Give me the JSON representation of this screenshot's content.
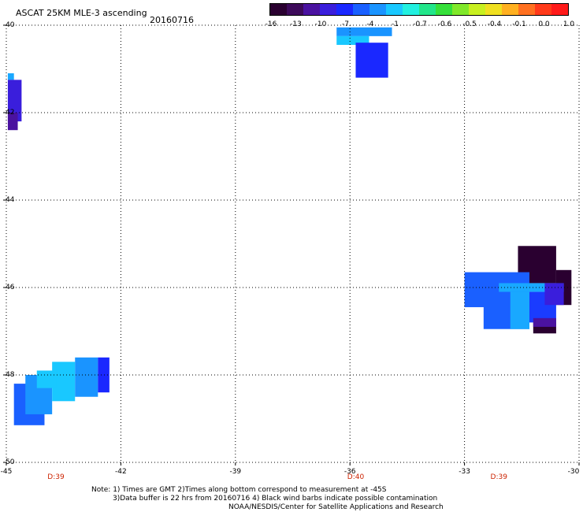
{
  "header": {
    "title": "ASCAT 25KM MLE-3 ascending",
    "date": "20160716"
  },
  "colorbar": {
    "colors": [
      "#2a0030",
      "#3d0a5a",
      "#4a12a0",
      "#3a1edc",
      "#1a28ff",
      "#1a60ff",
      "#1a94ff",
      "#19c8ff",
      "#22f0e0",
      "#22e68a",
      "#35e03a",
      "#80e82a",
      "#c8f020",
      "#f0e020",
      "#ffb020",
      "#ff7020",
      "#ff3a1a",
      "#ff1a1a"
    ],
    "labels": [
      "-16",
      "-13",
      "-10",
      "-7",
      "-4",
      "-1",
      "-0.7",
      "-0.6",
      "-0.5",
      "-0.4",
      "-0.1",
      "0.0",
      "1.0"
    ]
  },
  "axes": {
    "x_ticks": [
      "-45",
      "-42",
      "-39",
      "-36",
      "-33",
      "-30"
    ],
    "y_ticks": [
      "40",
      "42",
      "44",
      "46",
      "48",
      "50"
    ]
  },
  "swaths": [
    {
      "lon_min": -44.96,
      "lon_max": -44.8,
      "lat_min": 41.1,
      "lat_max": 41.25,
      "color": "#19a8ff"
    },
    {
      "lon_min": -44.96,
      "lon_max": -44.6,
      "lat_min": 41.25,
      "lat_max": 42.2,
      "color": "#3a1edc"
    },
    {
      "lon_min": -44.96,
      "lon_max": -44.7,
      "lat_min": 42.0,
      "lat_max": 42.4,
      "color": "#4a12a0"
    },
    {
      "lon_min": -36.35,
      "lon_max": -34.9,
      "lat_min": 40.05,
      "lat_max": 40.25,
      "color": "#1a94ff"
    },
    {
      "lon_min": -36.35,
      "lon_max": -35.5,
      "lat_min": 40.25,
      "lat_max": 40.45,
      "color": "#19c8ff"
    },
    {
      "lon_min": -35.85,
      "lon_max": -35.0,
      "lat_min": 40.4,
      "lat_max": 41.2,
      "color": "#1a28ff"
    },
    {
      "lon_min": -31.6,
      "lon_max": -30.6,
      "lat_min": 45.05,
      "lat_max": 45.9,
      "color": "#2a0030"
    },
    {
      "lon_min": -30.6,
      "lon_max": -30.2,
      "lat_min": 45.6,
      "lat_max": 46.4,
      "color": "#2a0030"
    },
    {
      "lon_min": -33.0,
      "lon_max": -31.3,
      "lat_min": 45.65,
      "lat_max": 46.45,
      "color": "#1a60ff"
    },
    {
      "lon_min": -32.1,
      "lon_max": -30.4,
      "lat_min": 45.9,
      "lat_max": 46.1,
      "color": "#19a8ff"
    },
    {
      "lon_min": -32.5,
      "lon_max": -31.3,
      "lat_min": 46.1,
      "lat_max": 46.95,
      "color": "#1a60ff"
    },
    {
      "lon_min": -31.8,
      "lon_max": -31.3,
      "lat_min": 46.1,
      "lat_max": 46.95,
      "color": "#19a8ff"
    },
    {
      "lon_min": -31.3,
      "lon_max": -30.6,
      "lat_min": 46.1,
      "lat_max": 46.8,
      "color": "#1a3cff"
    },
    {
      "lon_min": -30.9,
      "lon_max": -30.4,
      "lat_min": 45.9,
      "lat_max": 46.4,
      "color": "#3a1edc"
    },
    {
      "lon_min": -31.2,
      "lon_max": -30.6,
      "lat_min": 46.8,
      "lat_max": 47.05,
      "color": "#2a0030"
    },
    {
      "lon_min": -31.2,
      "lon_max": -30.6,
      "lat_min": 46.7,
      "lat_max": 46.9,
      "color": "#4a12a0"
    },
    {
      "lon_min": -44.8,
      "lon_max": -44.0,
      "lat_min": 48.2,
      "lat_max": 49.15,
      "color": "#1a60ff"
    },
    {
      "lon_min": -44.5,
      "lon_max": -43.8,
      "lat_min": 48.0,
      "lat_max": 48.9,
      "color": "#1a94ff"
    },
    {
      "lon_min": -43.8,
      "lon_max": -43.2,
      "lat_min": 47.7,
      "lat_max": 48.6,
      "color": "#19c8ff"
    },
    {
      "lon_min": -43.2,
      "lon_max": -42.6,
      "lat_min": 47.6,
      "lat_max": 48.5,
      "color": "#1a94ff"
    },
    {
      "lon_min": -42.6,
      "lon_max": -42.3,
      "lat_min": 47.6,
      "lat_max": 48.4,
      "color": "#1a28ff"
    },
    {
      "lon_min": -44.2,
      "lon_max": -43.7,
      "lat_min": 47.9,
      "lat_max": 48.3,
      "color": "#19c8ff"
    }
  ],
  "time_labels": [
    {
      "text": "D:39",
      "lon": -43.7
    },
    {
      "text": "D:40",
      "lon": -35.85
    },
    {
      "text": "D:39",
      "lon": -32.1
    }
  ],
  "notes": {
    "line1": "Note: 1) Times are GMT 2)Times along bottom correspond to measurement at -45S",
    "line2": "3)Data buffer is 22 hrs from 20160716 4) Black wind barbs indicate possible contamination",
    "line3": "NOAA/NESDIS/Center for Satellite Applications and Research"
  }
}
